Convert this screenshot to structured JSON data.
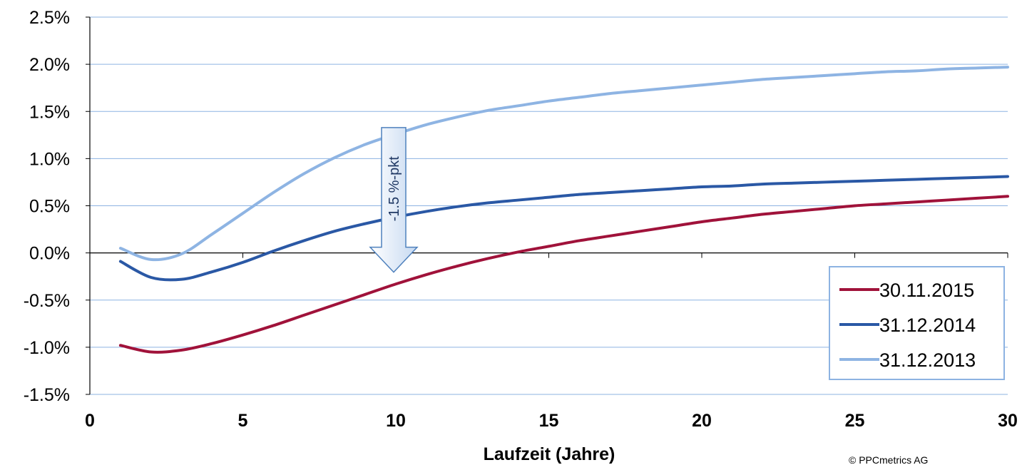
{
  "chart_data": {
    "type": "line",
    "xlabel": "Laufzeit (Jahre)",
    "ylabel": "",
    "title": "",
    "xlim": [
      0,
      30
    ],
    "ylim": [
      -1.5,
      2.5
    ],
    "x_ticks": [
      0,
      5,
      10,
      15,
      20,
      25,
      30
    ],
    "y_ticks": [
      -1.5,
      -1.0,
      -0.5,
      0.0,
      0.5,
      1.0,
      1.5,
      2.0,
      2.5
    ],
    "y_tick_labels": [
      "-1.5%",
      "-1.0%",
      "-0.5%",
      "0.0%",
      "0.5%",
      "1.0%",
      "1.5%",
      "2.0%",
      "2.5%"
    ],
    "x_tick_labels": [
      "0",
      "5",
      "10",
      "15",
      "20",
      "25",
      "30"
    ],
    "grid": "horizontal",
    "legend_position": "bottom-right",
    "series": [
      {
        "name": "30.11.2015",
        "color": "#a0123a",
        "x": [
          1,
          2,
          3,
          4,
          5,
          6,
          7,
          8,
          9,
          10,
          11,
          12,
          13,
          14,
          15,
          16,
          17,
          18,
          19,
          20,
          21,
          22,
          23,
          24,
          25,
          26,
          27,
          28,
          29,
          30
        ],
        "values": [
          -0.98,
          -1.05,
          -1.03,
          -0.96,
          -0.87,
          -0.77,
          -0.66,
          -0.55,
          -0.44,
          -0.33,
          -0.23,
          -0.14,
          -0.06,
          0.01,
          0.07,
          0.13,
          0.18,
          0.23,
          0.28,
          0.33,
          0.37,
          0.41,
          0.44,
          0.47,
          0.5,
          0.52,
          0.54,
          0.56,
          0.58,
          0.6
        ]
      },
      {
        "name": "31.12.2014",
        "color": "#2a58a5",
        "x": [
          1,
          2,
          3,
          4,
          5,
          6,
          7,
          8,
          9,
          10,
          11,
          12,
          13,
          14,
          15,
          16,
          17,
          18,
          19,
          20,
          21,
          22,
          23,
          24,
          25,
          26,
          27,
          28,
          29,
          30
        ],
        "values": [
          -0.09,
          -0.26,
          -0.28,
          -0.2,
          -0.1,
          0.02,
          0.13,
          0.23,
          0.31,
          0.38,
          0.44,
          0.49,
          0.53,
          0.56,
          0.59,
          0.62,
          0.64,
          0.66,
          0.68,
          0.7,
          0.71,
          0.73,
          0.74,
          0.75,
          0.76,
          0.77,
          0.78,
          0.79,
          0.8,
          0.81
        ]
      },
      {
        "name": "31.12.2013",
        "color": "#8eb4e3",
        "x": [
          1,
          2,
          3,
          4,
          5,
          6,
          7,
          8,
          9,
          10,
          11,
          12,
          13,
          14,
          15,
          16,
          17,
          18,
          19,
          20,
          21,
          22,
          23,
          24,
          25,
          26,
          27,
          28,
          29,
          30
        ],
        "values": [
          0.05,
          -0.07,
          -0.01,
          0.2,
          0.42,
          0.64,
          0.84,
          1.01,
          1.15,
          1.26,
          1.36,
          1.44,
          1.51,
          1.56,
          1.61,
          1.65,
          1.69,
          1.72,
          1.75,
          1.78,
          1.81,
          1.84,
          1.86,
          1.88,
          1.9,
          1.92,
          1.93,
          1.95,
          1.96,
          1.97
        ]
      }
    ],
    "annotations": [
      {
        "text": "-1.5 %-pkt",
        "x": 10,
        "y_from": 1.2,
        "y_to": 0.0,
        "type": "down-arrow"
      }
    ],
    "footnote": "© PPCmetrics AG"
  }
}
